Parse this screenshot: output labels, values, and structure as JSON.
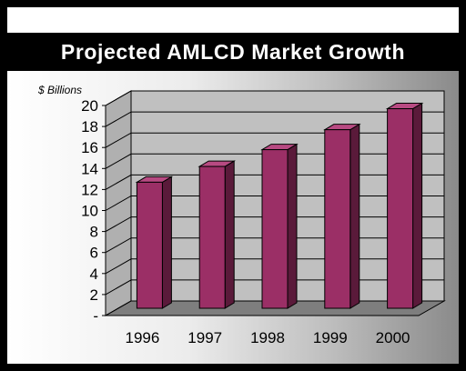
{
  "title": "Projected AMLCD Market Growth",
  "colors": {
    "bar_front": "#9b2f66",
    "bar_side": "#5a1a3a",
    "bar_top": "#b84a82",
    "wall": "#c0c0c0",
    "floor": "#7e7e7e",
    "grid": "#000000"
  },
  "chart_data": {
    "type": "bar",
    "title": "Projected AMLCD Market Growth",
    "ylabel": "$ Billions",
    "xlabel": "",
    "categories": [
      "1996",
      "1997",
      "1998",
      "1999",
      "2000"
    ],
    "values": [
      12,
      13.5,
      15.1,
      17,
      19
    ],
    "ylim": [
      0,
      20
    ],
    "yticks": [
      "-",
      "2",
      "4",
      "6",
      "8",
      "10",
      "12",
      "14",
      "16",
      "18",
      "20"
    ],
    "grid": true,
    "legend": "none"
  }
}
